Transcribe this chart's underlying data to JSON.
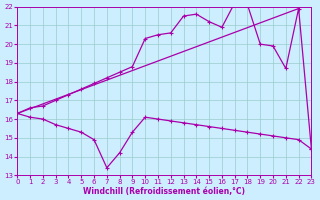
{
  "xlabel": "Windchill (Refroidissement éolien,°C)",
  "line_peaked": {
    "x": [
      0,
      1,
      2,
      3,
      4,
      5,
      6,
      7,
      8,
      9,
      10,
      11,
      12,
      13,
      14,
      15,
      16,
      17,
      18,
      19,
      20,
      21,
      22,
      23
    ],
    "y": [
      16.3,
      16.6,
      16.7,
      17.0,
      17.3,
      17.6,
      17.9,
      18.2,
      18.5,
      18.8,
      20.3,
      20.5,
      20.6,
      21.5,
      21.6,
      21.2,
      20.9,
      22.2,
      22.1,
      20.0,
      19.9,
      18.7,
      21.9,
      14.4
    ]
  },
  "line_straight": {
    "x": [
      0,
      22
    ],
    "y": [
      16.3,
      21.9
    ]
  },
  "line_dip": {
    "x": [
      0,
      1,
      2,
      3,
      4,
      5,
      6,
      7,
      8,
      9,
      10,
      11,
      12,
      13,
      14,
      15,
      16,
      17,
      18,
      19,
      20,
      21,
      22,
      23
    ],
    "y": [
      16.3,
      16.1,
      16.0,
      15.7,
      15.5,
      15.3,
      14.9,
      13.4,
      14.2,
      15.3,
      16.1,
      16.0,
      15.9,
      15.8,
      15.7,
      15.6,
      15.5,
      15.4,
      15.3,
      15.2,
      15.1,
      15.0,
      14.9,
      14.4
    ]
  },
  "line_color": "#aa00aa",
  "bg_color": "#cceeff",
  "grid_color": "#99cccc",
  "xlim": [
    0,
    23
  ],
  "ylim": [
    13,
    22
  ],
  "yticks": [
    13,
    14,
    15,
    16,
    17,
    18,
    19,
    20,
    21,
    22
  ],
  "xticks": [
    0,
    1,
    2,
    3,
    4,
    5,
    6,
    7,
    8,
    9,
    10,
    11,
    12,
    13,
    14,
    15,
    16,
    17,
    18,
    19,
    20,
    21,
    22,
    23
  ]
}
